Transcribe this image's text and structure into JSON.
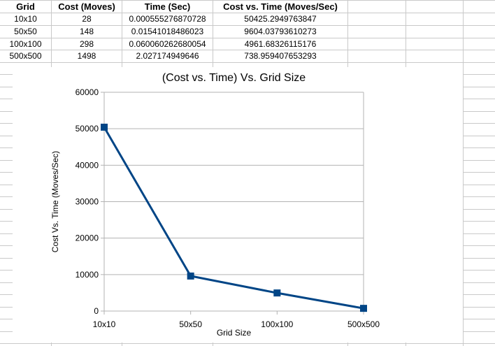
{
  "table": {
    "headers": [
      "Grid",
      "Cost (Moves)",
      "Time (Sec)",
      "Cost vs. Time (Moves/Sec)"
    ],
    "rows": [
      [
        "10x10",
        "28",
        "0.000555276870728",
        "50425.2949763847"
      ],
      [
        "50x50",
        "148",
        "0.01541018486023",
        "9604.03793610273"
      ],
      [
        "100x100",
        "298",
        "0.060060262680054",
        "4961.68326115176"
      ],
      [
        "500x500",
        "1498",
        "2.027174949646",
        "738.959407653293"
      ]
    ]
  },
  "chart_data": {
    "type": "line",
    "title": "(Cost vs. Time) Vs. Grid Size",
    "xlabel": "Grid Size",
    "ylabel": "Cost Vs. Time (Moves/Sec)",
    "categories": [
      "10x10",
      "50x50",
      "100x100",
      "500x500"
    ],
    "series": [
      {
        "values": [
          50425.2949763847,
          9604.03793610273,
          4961.68326115176,
          738.959407653293
        ]
      }
    ],
    "ylim": [
      0,
      60000
    ],
    "yticks": [
      0,
      10000,
      20000,
      30000,
      40000,
      50000,
      60000
    ],
    "grid": true,
    "legend": "none",
    "colors": {
      "series": "#004586",
      "grid": "#b3b3b3",
      "axis": "#b3b3b3"
    }
  }
}
